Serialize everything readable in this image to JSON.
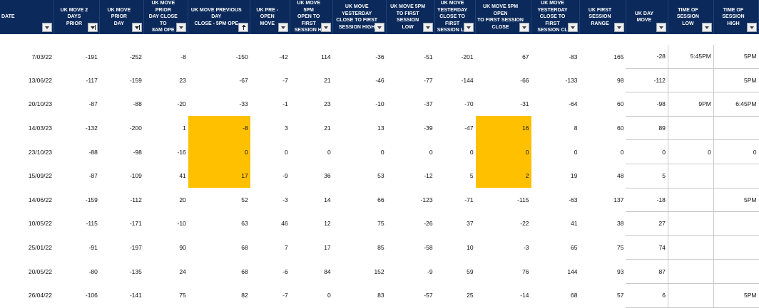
{
  "columns": [
    {
      "label": "DATE",
      "filter": "dropdown"
    },
    {
      "label": "UK MOVE 2 DAYS\nPRIOR",
      "filter": "filtered"
    },
    {
      "label": "UK MOVE PRIOR\nDAY",
      "filter": "filtered"
    },
    {
      "label": "UK MOVE PRIOR\nDAY CLOSE TO\n8AM OPE",
      "filter": "dropdown"
    },
    {
      "label": "UK MOVE PREVIOUS DAY\nCLOSE - 5PM OPE",
      "filter": "sorted"
    },
    {
      "label": "UK Pre -Open\nMove",
      "filter": "dropdown"
    },
    {
      "label": "UK MOVE 5PM\nOPEN TO FIRST\nSESSION HI",
      "filter": "dropdown"
    },
    {
      "label": "UK MOVE YESTERDAY\nCLOSE TO FIRST\nSESSION HIGH",
      "filter": "dropdown"
    },
    {
      "label": "UK MOVE 5PM\nTO FIRST SESSION\nLOW",
      "filter": "dropdown"
    },
    {
      "label": "UK MOVE\nYESTERDAY\nCLOSE TO FIRST\nSESSION LO",
      "filter": "dropdown"
    },
    {
      "label": "UK MOVE 5PM OPEN\nTO FIRST SESSION\nCLOSE",
      "filter": "dropdown"
    },
    {
      "label": "UK MOVE\nYESTERDAY\nCLOSE TO FIRST\nSESSION CL",
      "filter": "dropdown"
    },
    {
      "label": "UK FIRST SESSION\nRANGE",
      "filter": "dropdown"
    },
    {
      "label": "UK DAY MOVE",
      "filter": "dropdown"
    },
    {
      "label": "TIME OF SESSION\nLOW",
      "filter": "dropdown"
    },
    {
      "label": "TIME OF SESSION\nHIGH",
      "filter": "dropdown"
    }
  ],
  "rows": [
    [
      "7/03/22",
      "-191",
      "-252",
      "-8",
      "-150",
      "-42",
      "114",
      "-36",
      "-51",
      "-201",
      "67",
      "-83",
      "165",
      "-28",
      "5:45PM",
      "5PM"
    ],
    [
      "13/06/22",
      "-117",
      "-159",
      "23",
      "-67",
      "-7",
      "21",
      "-46",
      "-77",
      "-144",
      "-66",
      "-133",
      "98",
      "-112",
      "",
      "5PM"
    ],
    [
      "20/10/23",
      "-87",
      "-88",
      "-20",
      "-33",
      "-1",
      "23",
      "-10",
      "-37",
      "-70",
      "-31",
      "-64",
      "60",
      "-98",
      "9PM",
      "6:45PM"
    ],
    [
      "14/03/23",
      "-132",
      "-200",
      "1",
      "-8",
      "3",
      "21",
      "13",
      "-39",
      "-47",
      "16",
      "8",
      "60",
      "89",
      "",
      ""
    ],
    [
      "23/10/23",
      "-88",
      "-98",
      "-16",
      "0",
      "0",
      "0",
      "0",
      "0",
      "0",
      "0",
      "0",
      "0",
      "0",
      "0",
      "0"
    ],
    [
      "15/09/22",
      "-87",
      "-109",
      "41",
      "17",
      "-9",
      "36",
      "53",
      "-12",
      "5",
      "2",
      "19",
      "48",
      "5",
      "",
      ""
    ],
    [
      "14/06/22",
      "-159",
      "-112",
      "20",
      "52",
      "-3",
      "14",
      "66",
      "-123",
      "-71",
      "-115",
      "-63",
      "137",
      "-18",
      "",
      "5PM"
    ],
    [
      "10/05/22",
      "-115",
      "-171",
      "-10",
      "63",
      "46",
      "12",
      "75",
      "-26",
      "37",
      "-22",
      "41",
      "38",
      "27",
      "",
      ""
    ],
    [
      "25/01/22",
      "-91",
      "-197",
      "90",
      "68",
      "7",
      "17",
      "85",
      "-58",
      "10",
      "-3",
      "65",
      "75",
      "74",
      "",
      ""
    ],
    [
      "20/05/22",
      "-80",
      "-135",
      "24",
      "68",
      "-6",
      "84",
      "152",
      "-9",
      "59",
      "76",
      "144",
      "93",
      "87",
      "",
      ""
    ],
    [
      "26/04/22",
      "-106",
      "-141",
      "75",
      "82",
      "-7",
      "0",
      "83",
      "-57",
      "25",
      "-14",
      "68",
      "57",
      "6",
      "",
      "5PM"
    ]
  ],
  "highlight_color": "#ffc000",
  "header_color": "#0b2a5b"
}
